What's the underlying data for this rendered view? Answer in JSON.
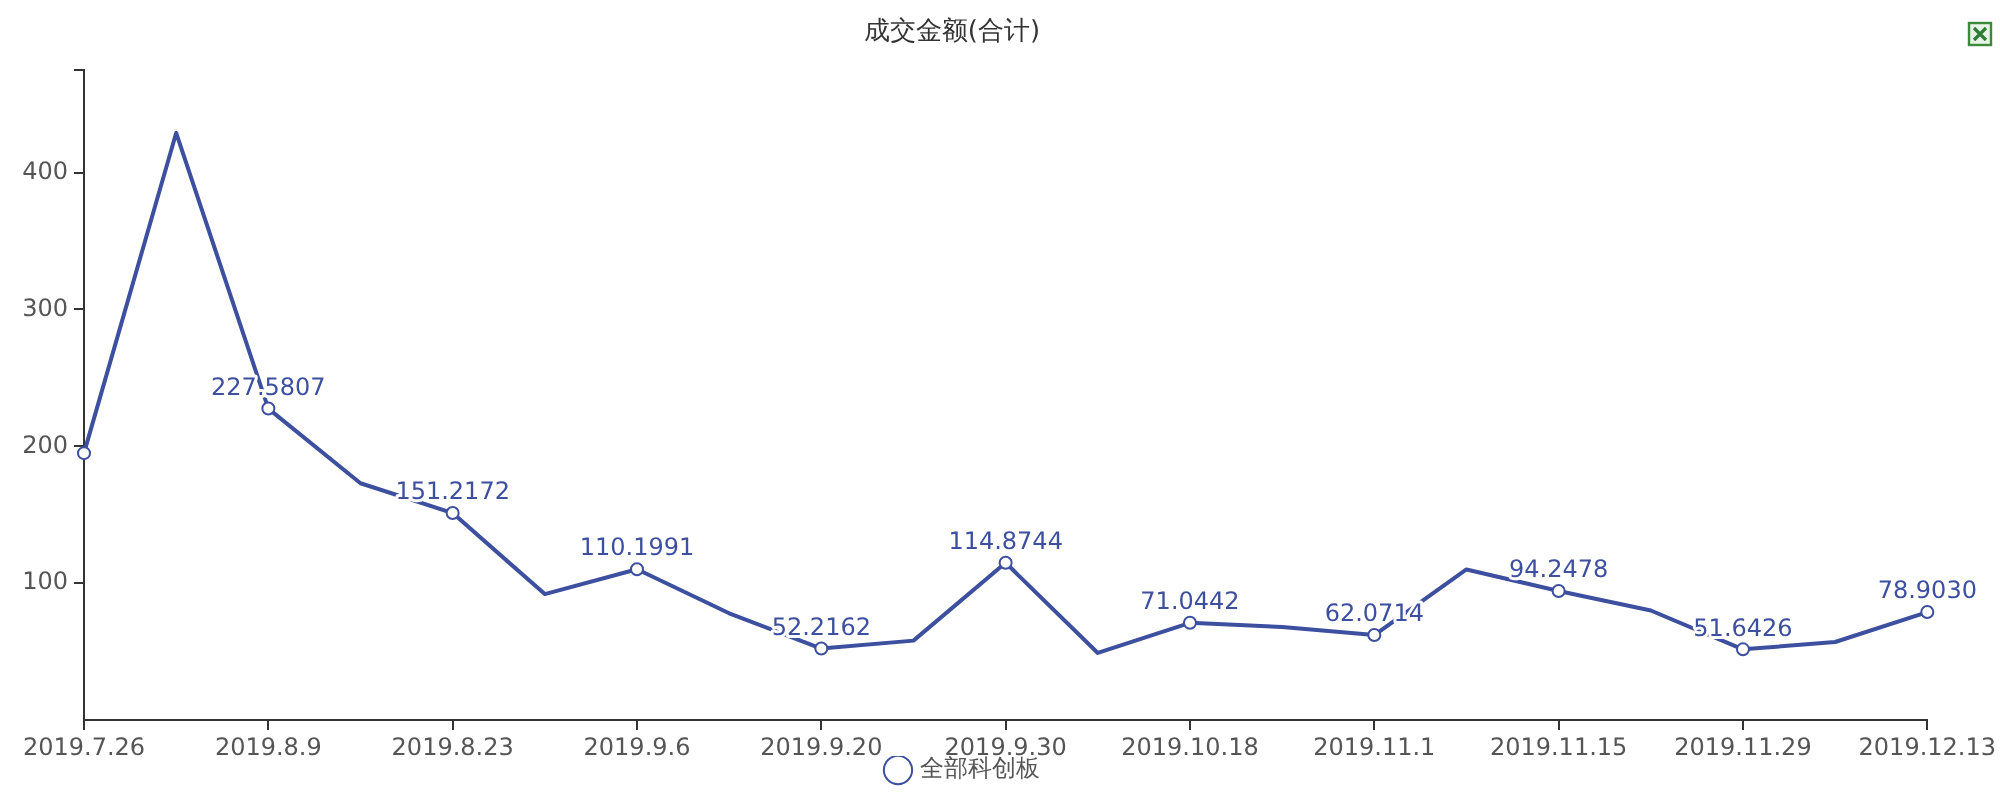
{
  "chart_data": {
    "type": "line",
    "title": "成交金额(合计)",
    "categories": [
      "2019.7.26",
      null,
      "2019.8.9",
      null,
      "2019.8.23",
      null,
      "2019.9.6",
      null,
      "2019.9.20",
      null,
      "2019.9.30",
      null,
      "2019.10.18",
      null,
      "2019.11.1",
      null,
      "2019.11.15",
      null,
      "2019.11.29",
      null,
      "2019.12.13"
    ],
    "series": [
      {
        "name": "全部科创板",
        "color": "#3d4f9f",
        "values": [
          195,
          429,
          227.5807,
          173,
          151.2172,
          92,
          110.1991,
          78,
          52.2162,
          58,
          114.8744,
          49,
          71.0442,
          68,
          62.0714,
          110,
          94.2478,
          80,
          51.6426,
          57,
          78.903
        ],
        "value_labels": [
          null,
          null,
          "227.5807",
          null,
          "151.2172",
          null,
          "110.1991",
          null,
          "52.2162",
          null,
          "114.8744",
          null,
          "71.0442",
          null,
          "62.0714",
          null,
          "94.2478",
          null,
          "51.6426",
          null,
          "78.9030"
        ]
      }
    ],
    "ylim": [
      0,
      475
    ],
    "yticks": [
      100,
      200,
      300,
      400,
      {
        "value": 475,
        "label": null
      }
    ],
    "legend": "bottom",
    "marker": "circle",
    "line_style": "solid"
  }
}
